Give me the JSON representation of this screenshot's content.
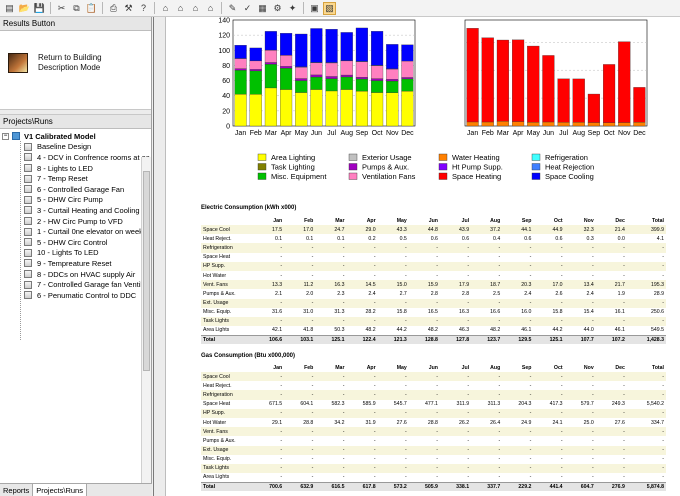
{
  "toolbar": {
    "icons": [
      "open-folder-icon",
      "open-icon",
      "save-icon",
      "cut-icon",
      "copy-icon",
      "paste-icon",
      "print-icon",
      "tools-icon",
      "help-icon",
      "building-icon",
      "building2-icon",
      "building3-icon",
      "building4-icon",
      "edit-icon",
      "check-icon",
      "table-icon",
      "gear-icon",
      "wizard-icon",
      "layers-icon",
      "results-icon"
    ]
  },
  "results_panel": {
    "title": "Results Button",
    "return_label_line1": "Return to Building",
    "return_label_line2": "Description Mode"
  },
  "projects_panel": {
    "title": "Projects\\Runs",
    "root": "V1 Calibrated Model",
    "runs": [
      "Baseline Design",
      "4 - DCV in Confrence rooms at ea",
      "8 - Lights to LED",
      "7 - Temp Reset",
      "6 - Controlled Garage Fan",
      "5 - DHW Circ Pump",
      "3 - Curtail Heating and Cooling o",
      "2 - HW Circ Pump to VFD",
      "1 - Curtail 0ne elevator on weeker",
      "5 - DHW Circ Control",
      "10 - Lights To LED",
      "9 - Tempreature Reset",
      "8 - DDCs on HVAC supply Air",
      "7 - Controlled Garage fan Ventilat",
      "6 - Penumatic Control to DDC"
    ]
  },
  "tabs": {
    "reports": "Reports",
    "projects": "Projects\\Runs"
  },
  "colors": {
    "area_lighting": "#ffff00",
    "task_lighting": "#808000",
    "misc_equipment": "#00c000",
    "exterior_usage": "#c0c0c0",
    "pumps_aux": "#a000c0",
    "ventilation_fans": "#ff80c0",
    "water_heating": "#ff8000",
    "ht_pump_supp": "#8000ff",
    "space_heating": "#ff0000",
    "refrigeration": "#40ffff",
    "heat_rejection": "#4080ff",
    "space_cooling": "#0000ff"
  },
  "legend": {
    "col1": [
      "Area Lighting",
      "Task Lighting",
      "Misc. Equipment"
    ],
    "col2": [
      "Exterior Usage",
      "Pumps & Aux.",
      "Ventilation Fans"
    ],
    "col3": [
      "Water Heating",
      "Ht Pump Supp.",
      "Space Heating"
    ],
    "col4": [
      "Refrigeration",
      "Heat Rejection",
      "Space Cooling"
    ]
  },
  "chart_data": [
    {
      "type": "bar",
      "stacked": true,
      "categories": [
        "Jan",
        "Feb",
        "Mar",
        "Apr",
        "May",
        "Jun",
        "Jul",
        "Aug",
        "Sep",
        "Oct",
        "Nov",
        "Dec"
      ],
      "ylim": [
        0,
        140
      ],
      "yticks": [
        "0",
        "20",
        "40",
        "60",
        "80",
        "100",
        "120",
        "140"
      ],
      "series": [
        {
          "name": "Area Lighting",
          "color": "#ffff00",
          "values": [
            42.1,
            41.8,
            50.3,
            48.2,
            44.2,
            48.2,
            46.3,
            48.2,
            46.1,
            44.2,
            44.0,
            46.1
          ]
        },
        {
          "name": "Misc. Equipment",
          "color": "#00c000",
          "values": [
            31.6,
            31.0,
            31.3,
            28.2,
            15.8,
            16.5,
            16.3,
            16.6,
            16.0,
            15.8,
            15.4,
            16.1
          ]
        },
        {
          "name": "Pumps & Aux.",
          "color": "#a000c0",
          "values": [
            2.1,
            2.0,
            2.3,
            2.4,
            2.7,
            2.8,
            2.8,
            2.5,
            2.4,
            2.6,
            2.4,
            1.9
          ]
        },
        {
          "name": "Ventilation Fans",
          "color": "#ff80c0",
          "values": [
            13.3,
            11.2,
            16.3,
            14.5,
            15.0,
            15.9,
            17.9,
            18.7,
            20.3,
            17.0,
            13.4,
            21.7
          ]
        },
        {
          "name": "Heat Rejection",
          "color": "#4080ff",
          "values": [
            0.1,
            0.1,
            0.1,
            0.2,
            0.5,
            0.6,
            0.6,
            0.4,
            0.6,
            0.6,
            0.3,
            0.0
          ]
        },
        {
          "name": "Space Cooling",
          "color": "#0000ff",
          "values": [
            17.5,
            17.0,
            24.7,
            29.0,
            43.3,
            44.8,
            43.9,
            37.2,
            44.1,
            44.9,
            32.3,
            21.4
          ]
        }
      ]
    },
    {
      "type": "bar",
      "stacked": true,
      "categories": [
        "Jan",
        "Feb",
        "Mar",
        "Apr",
        "May",
        "Jun",
        "Jul",
        "Aug",
        "Sep",
        "Oct",
        "Nov",
        "Dec"
      ],
      "ylim": [
        0,
        760
      ],
      "series": [
        {
          "name": "Water Heating",
          "color": "#ff8000",
          "values": [
            29.1,
            28.8,
            34.2,
            31.9,
            27.6,
            28.8,
            26.2,
            26.4,
            24.9,
            24.1,
            25.0,
            27.6
          ]
        },
        {
          "name": "Space Heating",
          "color": "#ff0000",
          "values": [
            671.5,
            604.1,
            582.3,
            585.9,
            545.7,
            477.1,
            311.9,
            311.3,
            204.3,
            417.3,
            579.7,
            249.3
          ]
        }
      ]
    }
  ],
  "electric_table": {
    "title": "Electric Consumption (kWh x000)",
    "columns": [
      "Jan",
      "Feb",
      "Mar",
      "Apr",
      "May",
      "Jun",
      "Jul",
      "Aug",
      "Sep",
      "Oct",
      "Nov",
      "Dec",
      "Total"
    ],
    "rows": [
      {
        "label": "Space Cool",
        "values": [
          "17.5",
          "17.0",
          "24.7",
          "29.0",
          "43.3",
          "44.8",
          "43.9",
          "37.2",
          "44.1",
          "44.9",
          "32.3",
          "21.4",
          "399.9"
        ]
      },
      {
        "label": "Heat Reject.",
        "values": [
          "0.1",
          "0.1",
          "0.1",
          "0.2",
          "0.5",
          "0.6",
          "0.6",
          "0.4",
          "0.6",
          "0.6",
          "0.3",
          "0.0",
          "4.1"
        ]
      },
      {
        "label": "Refrigeration",
        "values": [
          "-",
          "-",
          "-",
          "-",
          "-",
          "-",
          "-",
          "-",
          "-",
          "-",
          "-",
          "-",
          "-"
        ]
      },
      {
        "label": "Space Heat",
        "values": [
          "-",
          "-",
          "-",
          "-",
          "-",
          "-",
          "-",
          "-",
          "-",
          "-",
          "-",
          "-",
          "-"
        ]
      },
      {
        "label": "HP Supp.",
        "values": [
          "-",
          "-",
          "-",
          "-",
          "-",
          "-",
          "-",
          "-",
          "-",
          "-",
          "-",
          "-",
          "-"
        ]
      },
      {
        "label": "Hot Water",
        "values": [
          "-",
          "-",
          "-",
          "-",
          "-",
          "-",
          "-",
          "-",
          "-",
          "-",
          "-",
          "-",
          "-"
        ]
      },
      {
        "label": "Vent. Fans",
        "values": [
          "13.3",
          "11.2",
          "16.3",
          "14.5",
          "15.0",
          "15.9",
          "17.9",
          "18.7",
          "20.3",
          "17.0",
          "13.4",
          "21.7",
          "195.3"
        ]
      },
      {
        "label": "Pumps & Aux.",
        "values": [
          "2.1",
          "2.0",
          "2.3",
          "2.4",
          "2.7",
          "2.8",
          "2.8",
          "2.5",
          "2.4",
          "2.6",
          "2.4",
          "1.9",
          "28.9"
        ]
      },
      {
        "label": "Ext. Usage",
        "values": [
          "-",
          "-",
          "-",
          "-",
          "-",
          "-",
          "-",
          "-",
          "-",
          "-",
          "-",
          "-",
          "-"
        ]
      },
      {
        "label": "Misc. Equip.",
        "values": [
          "31.6",
          "31.0",
          "31.3",
          "28.2",
          "15.8",
          "16.5",
          "16.3",
          "16.6",
          "16.0",
          "15.8",
          "15.4",
          "16.1",
          "250.6"
        ]
      },
      {
        "label": "Task Lights",
        "values": [
          "-",
          "-",
          "-",
          "-",
          "-",
          "-",
          "-",
          "-",
          "-",
          "-",
          "-",
          "-",
          "-"
        ]
      },
      {
        "label": "Area Lights",
        "values": [
          "42.1",
          "41.8",
          "50.3",
          "48.2",
          "44.2",
          "48.2",
          "46.3",
          "48.2",
          "46.1",
          "44.2",
          "44.0",
          "46.1",
          "549.5"
        ]
      }
    ],
    "total": {
      "label": "Total",
      "values": [
        "106.6",
        "103.1",
        "125.1",
        "122.4",
        "121.3",
        "128.8",
        "127.8",
        "123.7",
        "129.5",
        "125.1",
        "107.7",
        "107.2",
        "1,428.3"
      ]
    }
  },
  "gas_table": {
    "title": "Gas Consumption (Btu x000,000)",
    "columns": [
      "Jan",
      "Feb",
      "Mar",
      "Apr",
      "May",
      "Jun",
      "Jul",
      "Aug",
      "Sep",
      "Oct",
      "Nov",
      "Dec",
      "Total"
    ],
    "rows": [
      {
        "label": "Space Cool",
        "values": [
          "-",
          "-",
          "-",
          "-",
          "-",
          "-",
          "-",
          "-",
          "-",
          "-",
          "-",
          "-",
          "-"
        ]
      },
      {
        "label": "Heat Reject.",
        "values": [
          "-",
          "-",
          "-",
          "-",
          "-",
          "-",
          "-",
          "-",
          "-",
          "-",
          "-",
          "-",
          "-"
        ]
      },
      {
        "label": "Refrigeration",
        "values": [
          "-",
          "-",
          "-",
          "-",
          "-",
          "-",
          "-",
          "-",
          "-",
          "-",
          "-",
          "-",
          "-"
        ]
      },
      {
        "label": "Space Heat",
        "values": [
          "671.5",
          "604.1",
          "582.3",
          "585.9",
          "545.7",
          "477.1",
          "311.9",
          "311.3",
          "204.3",
          "417.3",
          "579.7",
          "249.3",
          "5,540.2"
        ]
      },
      {
        "label": "HP Supp.",
        "values": [
          "-",
          "-",
          "-",
          "-",
          "-",
          "-",
          "-",
          "-",
          "-",
          "-",
          "-",
          "-",
          "-"
        ]
      },
      {
        "label": "Hot Water",
        "values": [
          "29.1",
          "28.8",
          "34.2",
          "31.9",
          "27.6",
          "28.8",
          "26.2",
          "26.4",
          "24.9",
          "24.1",
          "25.0",
          "27.6",
          "334.7"
        ]
      },
      {
        "label": "Vent. Fans",
        "values": [
          "-",
          "-",
          "-",
          "-",
          "-",
          "-",
          "-",
          "-",
          "-",
          "-",
          "-",
          "-",
          "-"
        ]
      },
      {
        "label": "Pumps & Aux.",
        "values": [
          "-",
          "-",
          "-",
          "-",
          "-",
          "-",
          "-",
          "-",
          "-",
          "-",
          "-",
          "-",
          "-"
        ]
      },
      {
        "label": "Ext. Usage",
        "values": [
          "-",
          "-",
          "-",
          "-",
          "-",
          "-",
          "-",
          "-",
          "-",
          "-",
          "-",
          "-",
          "-"
        ]
      },
      {
        "label": "Misc. Equip.",
        "values": [
          "-",
          "-",
          "-",
          "-",
          "-",
          "-",
          "-",
          "-",
          "-",
          "-",
          "-",
          "-",
          "-"
        ]
      },
      {
        "label": "Task Lights",
        "values": [
          "-",
          "-",
          "-",
          "-",
          "-",
          "-",
          "-",
          "-",
          "-",
          "-",
          "-",
          "-",
          "-"
        ]
      },
      {
        "label": "Area Lights",
        "values": [
          "-",
          "-",
          "-",
          "-",
          "-",
          "-",
          "-",
          "-",
          "-",
          "-",
          "-",
          "-",
          "-"
        ]
      }
    ],
    "total": {
      "label": "Total",
      "values": [
        "700.6",
        "632.9",
        "616.5",
        "617.8",
        "573.2",
        "505.9",
        "338.1",
        "337.7",
        "229.2",
        "441.4",
        "604.7",
        "276.9",
        "5,874.8"
      ]
    }
  }
}
